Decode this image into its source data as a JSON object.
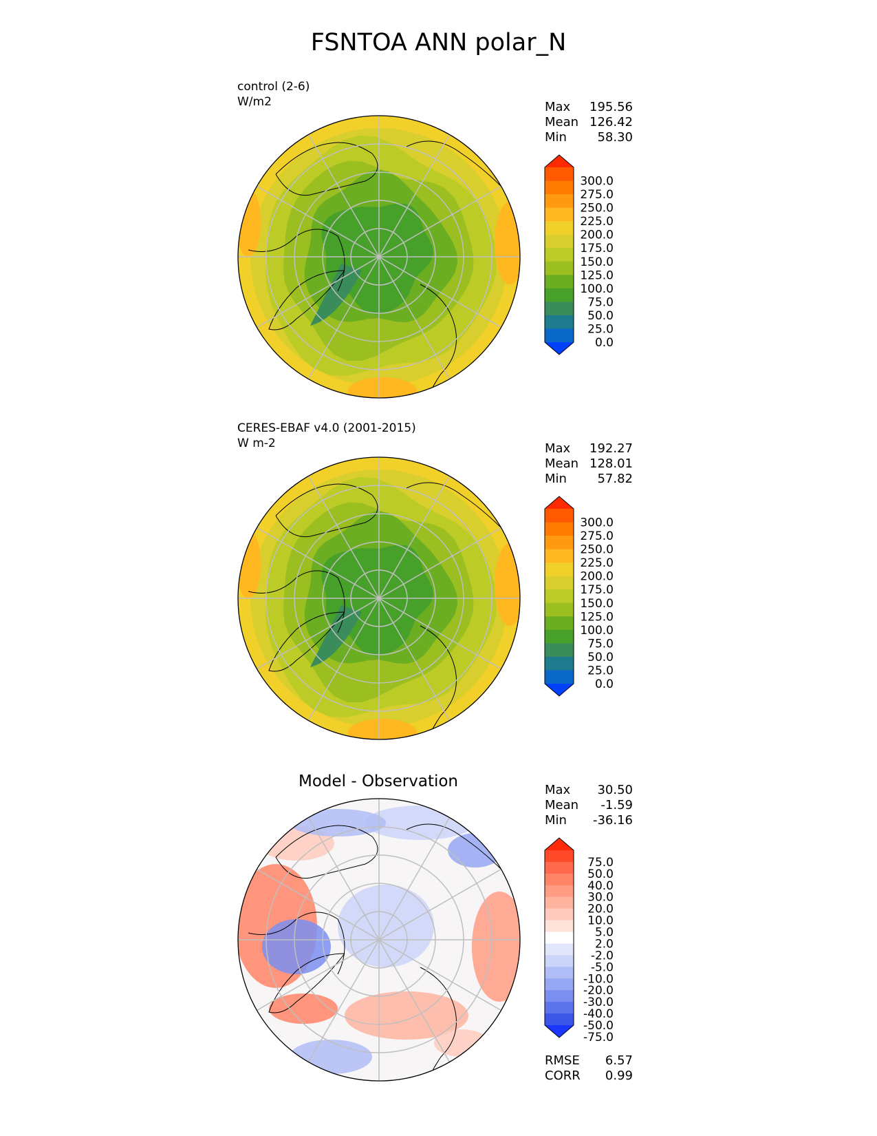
{
  "title": "FSNTOA ANN polar_N",
  "colorbar_abs": {
    "labels": [
      "300.0",
      "275.0",
      "250.0",
      "225.0",
      "200.0",
      "175.0",
      "150.0",
      "125.0",
      "100.0",
      "75.0",
      "50.0",
      "25.0",
      "0.0"
    ],
    "colors": [
      "#ff2a00",
      "#ff5a00",
      "#ff7a00",
      "#ff9a10",
      "#ffb820",
      "#f2d02a",
      "#d8cf2e",
      "#bccb26",
      "#9bbe20",
      "#6cae22",
      "#47a02a",
      "#3a8c5a",
      "#1e7c8e",
      "#0a68c8",
      "#0040ff"
    ]
  },
  "colorbar_diff": {
    "labels": [
      "75.0",
      "50.0",
      "40.0",
      "30.0",
      "20.0",
      "10.0",
      "5.0",
      "2.0",
      "-2.0",
      "-5.0",
      "-10.0",
      "-20.0",
      "-30.0",
      "-40.0",
      "-50.0",
      "-75.0"
    ],
    "colors": [
      "#ff2a0a",
      "#ff4a2a",
      "#ff6a4c",
      "#ff8466",
      "#ff9c84",
      "#ffb4a0",
      "#ffcbbe",
      "#ffe2da",
      "#ffffff",
      "#e2e6fb",
      "#cbd4f9",
      "#b0bdf6",
      "#96a7f3",
      "#7b8ff0",
      "#5e74ec",
      "#3c56e8",
      "#1a36ff"
    ]
  },
  "panels": [
    {
      "subtitle_1": "control (2-6)",
      "subtitle_2": "W/m2",
      "stats": {
        "max_label": "Max",
        "max": "195.56",
        "mean_label": "Mean",
        "mean": "126.42",
        "min_label": "Min",
        "min": "58.30"
      }
    },
    {
      "subtitle_1": "CERES-EBAF v4.0 (2001-2015)",
      "subtitle_2": "W m-2",
      "stats": {
        "max_label": "Max",
        "max": "192.27",
        "mean_label": "Mean",
        "mean": "128.01",
        "min_label": "Min",
        "min": "57.82"
      }
    },
    {
      "title": "Model - Observation",
      "stats": {
        "max_label": "Max",
        "max": "30.50",
        "mean_label": "Mean",
        "mean": "-1.59",
        "min_label": "Min",
        "min": "-36.16"
      },
      "footer": {
        "rmse_label": "RMSE",
        "rmse": "6.57",
        "corr_label": "CORR",
        "corr": "0.99"
      }
    }
  ],
  "chart_data": [
    {
      "type": "heatmap",
      "projection": "north polar stereographic",
      "title": "control (2-6)",
      "units": "W/m2",
      "summary": {
        "max": 195.56,
        "mean": 126.42,
        "min": 58.3
      },
      "levels": [
        0,
        25,
        50,
        75,
        100,
        125,
        150,
        175,
        200,
        225,
        250,
        275,
        300
      ],
      "colorbar_extends": "both"
    },
    {
      "type": "heatmap",
      "projection": "north polar stereographic",
      "title": "CERES-EBAF v4.0 (2001-2015)",
      "units": "W m-2",
      "summary": {
        "max": 192.27,
        "mean": 128.01,
        "min": 57.82
      },
      "levels": [
        0,
        25,
        50,
        75,
        100,
        125,
        150,
        175,
        200,
        225,
        250,
        275,
        300
      ],
      "colorbar_extends": "both"
    },
    {
      "type": "heatmap",
      "projection": "north polar stereographic",
      "title": "Model - Observation",
      "summary": {
        "max": 30.5,
        "mean": -1.59,
        "min": -36.16,
        "rmse": 6.57,
        "corr": 0.99
      },
      "levels": [
        -75,
        -50,
        -40,
        -30,
        -20,
        -10,
        -5,
        -2,
        2,
        5,
        10,
        20,
        30,
        40,
        50,
        75
      ],
      "colorbar_extends": "both"
    }
  ]
}
